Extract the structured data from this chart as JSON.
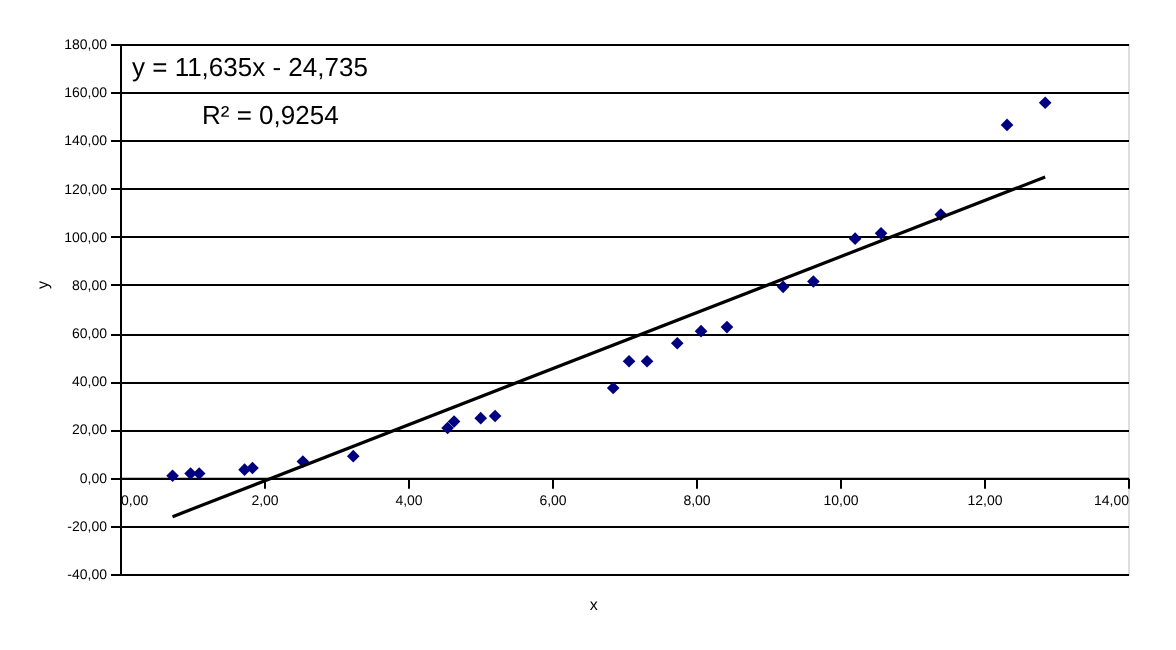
{
  "chart_data": {
    "type": "scatter",
    "xlabel": "x",
    "ylabel": "y",
    "xlim": [
      0,
      14
    ],
    "ylim": [
      -40,
      180
    ],
    "xticks": [
      {
        "value": 0,
        "label": "0,00"
      },
      {
        "value": 2,
        "label": "2,00"
      },
      {
        "value": 4,
        "label": "4,00"
      },
      {
        "value": 6,
        "label": "6,00"
      },
      {
        "value": 8,
        "label": "8,00"
      },
      {
        "value": 10,
        "label": "10,00"
      },
      {
        "value": 12,
        "label": "12,00"
      },
      {
        "value": 14,
        "label": "14,00"
      }
    ],
    "yticks": [
      {
        "value": -40,
        "label": "-40,00"
      },
      {
        "value": -20,
        "label": "-20,00"
      },
      {
        "value": 0,
        "label": "0,00"
      },
      {
        "value": 20,
        "label": "20,00"
      },
      {
        "value": 40,
        "label": "40,00"
      },
      {
        "value": 60,
        "label": "60,00"
      },
      {
        "value": 80,
        "label": "80,00"
      },
      {
        "value": 100,
        "label": "100,00"
      },
      {
        "value": 120,
        "label": "120,00"
      },
      {
        "value": 140,
        "label": "140,00"
      },
      {
        "value": 160,
        "label": "160,00"
      },
      {
        "value": 180,
        "label": "180,00"
      }
    ],
    "grid": "y",
    "annotations": [
      "y = 11,635x - 24,735",
      "R² = 0,9254"
    ],
    "series": [
      {
        "color": "#000080",
        "marker": "diamond",
        "x": [
          0.73,
          0.98,
          1.1,
          1.73,
          1.84,
          2.54,
          3.24,
          4.55,
          4.64,
          5.01,
          5.21,
          6.85,
          7.07,
          7.32,
          7.74,
          8.07,
          8.43,
          9.21,
          9.63,
          10.21,
          10.57,
          11.4,
          12.32,
          12.85
        ],
        "values": [
          0.8,
          1.7,
          1.7,
          3.3,
          4,
          6.7,
          8.9,
          20.6,
          23.3,
          24.7,
          25.6,
          37.2,
          48.3,
          48.3,
          55.8,
          60.8,
          62.5,
          79.2,
          81.4,
          99.2,
          101.4,
          109.2,
          146.4,
          155.6
        ]
      },
      {
        "type": "line",
        "color": "#000000",
        "line_style": "solid",
        "x": [
          0.73,
          12.85
        ],
        "values": [
          -16.2,
          124.8
        ]
      }
    ]
  }
}
